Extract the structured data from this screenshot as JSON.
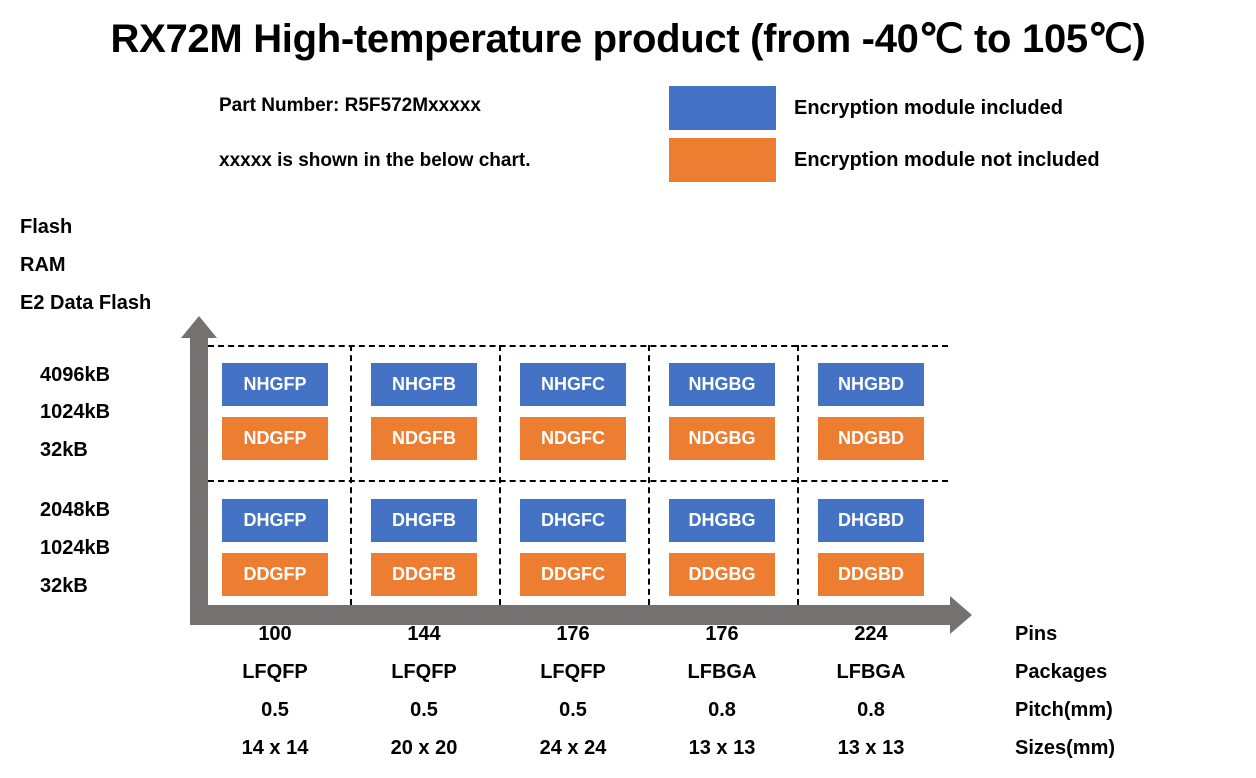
{
  "title": "RX72M High-temperature product (from -40℃ to 105℃)",
  "notes": {
    "part_number": "Part Number: R5F572Mxxxxx",
    "explain": "xxxxx is shown in the below chart."
  },
  "legend": [
    {
      "label": "Encryption module included",
      "color": "#4472C4"
    },
    {
      "label": "Encryption module not included",
      "color": "#ED7D31"
    }
  ],
  "y_axis": {
    "labels": [
      "Flash",
      "RAM",
      "E2 Data Flash"
    ]
  },
  "rows": [
    {
      "values": [
        "4096kB",
        "1024kB",
        "32kB"
      ],
      "codes_included": [
        "NHGFP",
        "NHGFB",
        "NHGFC",
        "NHGBG",
        "NHGBD"
      ],
      "codes_not_included": [
        "NDGFP",
        "NDGFB",
        "NDGFC",
        "NDGBG",
        "NDGBD"
      ]
    },
    {
      "values": [
        "2048kB",
        "1024kB",
        "32kB"
      ],
      "codes_included": [
        "DHGFP",
        "DHGFB",
        "DHGFC",
        "DHGBG",
        "DHGBD"
      ],
      "codes_not_included": [
        "DDGFP",
        "DDGFB",
        "DDGFC",
        "DDGBG",
        "DDGBD"
      ]
    }
  ],
  "x_axis": {
    "row_labels": [
      "Pins",
      "Packages",
      "Pitch(mm)",
      "Sizes(mm)"
    ],
    "columns": [
      [
        "100",
        "LFQFP",
        "0.5",
        "14 x 14"
      ],
      [
        "144",
        "LFQFP",
        "0.5",
        "20 x 20"
      ],
      [
        "176",
        "LFQFP",
        "0.5",
        "24 x 24"
      ],
      [
        "176",
        "LFBGA",
        "0.8",
        "13 x 13"
      ],
      [
        "224",
        "LFBGA",
        "0.8",
        "13 x 13"
      ]
    ]
  },
  "colors": {
    "axis": "#767171",
    "included": "#4472C4",
    "not_included": "#ED7D31"
  }
}
